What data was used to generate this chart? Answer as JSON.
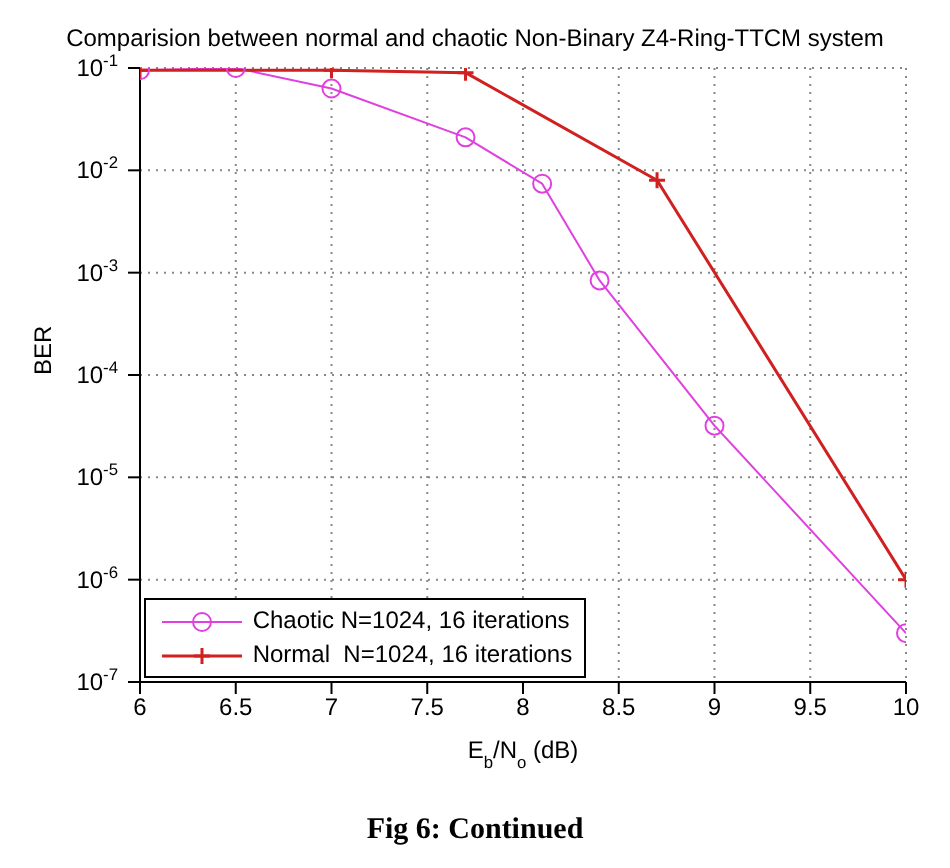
{
  "chart_data": {
    "type": "line",
    "title": "Comparision between normal and chaotic Non-Binary Z4-Ring-TTCM system",
    "xlabel": "E$_{b}$/N$_{o}$ (dB)",
    "ylabel": "BER",
    "series": [
      {
        "name": "Chaotic N=1024, 16 iterations",
        "color": "#e040e0",
        "marker": "circle",
        "x": [
          6,
          6.5,
          7,
          7.7,
          8.1,
          8.4,
          9,
          10
        ],
        "values": [
          0.095,
          0.1,
          0.063,
          0.021,
          0.0074,
          0.00084,
          3.2e-05,
          3e-07
        ]
      },
      {
        "name": "Normal  N=1024, 16 iterations",
        "color": "#d02020",
        "marker": "cross",
        "x": [
          6,
          7,
          7.7,
          8.7,
          10
        ],
        "values": [
          0.095,
          0.095,
          0.09,
          0.008,
          1e-06
        ]
      }
    ],
    "xlim": [
      6,
      10
    ],
    "xticks": [
      6,
      6.5,
      7,
      7.5,
      8,
      8.5,
      9,
      9.5,
      10
    ],
    "ylim": [
      1e-07,
      0.1
    ],
    "log": "y",
    "yticks": [
      {
        "value": 0.1,
        "label": "10$^{-1}$"
      },
      {
        "value": 0.01,
        "label": "10$^{-2}$"
      },
      {
        "value": 0.001,
        "label": "10$^{-3}$"
      },
      {
        "value": 0.0001,
        "label": "10$^{-4}$"
      },
      {
        "value": 1e-05,
        "label": "10$^{-5}$"
      },
      {
        "value": 1e-06,
        "label": "10$^{-6}$"
      },
      {
        "value": 1e-07,
        "label": "10$^{-7}$"
      }
    ],
    "grid": true,
    "legend": "bottom left",
    "annotations": [
      "Fig 6: Continued"
    ]
  }
}
